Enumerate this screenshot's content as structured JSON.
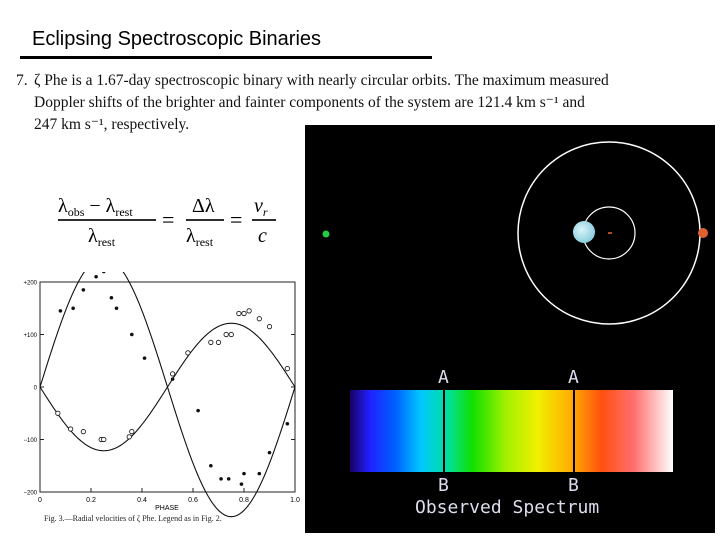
{
  "slide": {
    "title": "Eclipsing Spectroscopic Binaries"
  },
  "problem": {
    "number": "7.",
    "line1": "ζ  Phe is a 1.67-day spectroscopic binary with nearly circular orbits. The maximum measured",
    "line2": "Doppler shifts of the brighter and fainter components of the system are 121.4 km s⁻¹ and",
    "line3": "247 km s⁻¹, respectively."
  },
  "equation": {
    "num1": "λ",
    "sub_obs": "obs",
    "minus": " − λ",
    "sub_rest": "rest",
    "den1": "λ",
    "den1_sub": "rest",
    "eq1": "=",
    "num2": "Δλ",
    "den2": "λ",
    "den2_sub": "rest",
    "eq2": "=",
    "num3": "v",
    "num3_sub": "r",
    "den3": "c"
  },
  "chart_data": {
    "type": "scatter",
    "title": "",
    "xlabel": "PHASE",
    "ylabel": "",
    "xlim": [
      0,
      1.0
    ],
    "ylim": [
      -200,
      200
    ],
    "x_ticks": [
      0,
      0.2,
      0.4,
      0.6,
      0.8,
      1.0
    ],
    "x_tick_labels": [
      "0",
      "0.2",
      "0.4",
      "0.6",
      "0.8",
      "1.0"
    ],
    "y_ticks": [
      200,
      100,
      0,
      -100,
      -200
    ],
    "y_tick_labels": [
      "+200",
      "+100",
      "0",
      "−100",
      "−200"
    ],
    "series": [
      {
        "fit_amplitude": 247,
        "fit_phase_peak": 0.25,
        "points": [
          [
            0.08,
            145
          ],
          [
            0.13,
            150
          ],
          [
            0.17,
            185
          ],
          [
            0.22,
            210
          ],
          [
            0.25,
            220
          ],
          [
            0.28,
            170
          ],
          [
            0.3,
            150
          ],
          [
            0.36,
            100
          ],
          [
            0.41,
            55
          ],
          [
            0.52,
            15
          ],
          [
            0.62,
            -45
          ],
          [
            0.67,
            -150
          ],
          [
            0.71,
            -175
          ],
          [
            0.74,
            -175
          ],
          [
            0.79,
            -185
          ],
          [
            0.8,
            -165
          ],
          [
            0.86,
            -165
          ],
          [
            0.9,
            -125
          ],
          [
            0.97,
            -70
          ]
        ]
      },
      {
        "fit_amplitude": 121.4,
        "fit_phase_peak": 0.75,
        "points": [
          [
            0.07,
            -50
          ],
          [
            0.12,
            -80
          ],
          [
            0.17,
            -85
          ],
          [
            0.24,
            -100
          ],
          [
            0.25,
            -100
          ],
          [
            0.35,
            -95
          ],
          [
            0.36,
            -85
          ],
          [
            0.52,
            25
          ],
          [
            0.58,
            65
          ],
          [
            0.67,
            85
          ],
          [
            0.7,
            85
          ],
          [
            0.73,
            100
          ],
          [
            0.75,
            100
          ],
          [
            0.78,
            140
          ],
          [
            0.8,
            140
          ],
          [
            0.82,
            145
          ],
          [
            0.86,
            130
          ],
          [
            0.9,
            115
          ],
          [
            0.97,
            35
          ]
        ]
      }
    ]
  },
  "figure": {
    "caption": "Fig. 3.—Radial velocities of ζ Phe. Legend as in Fig. 2."
  },
  "simulation": {
    "spectrum_label_top_1": "A",
    "spectrum_label_top_2": "A",
    "spectrum_label_bottom_1": "B",
    "spectrum_label_bottom_2": "B",
    "caption": "Observed Spectrum",
    "colors": {
      "background": "#000000",
      "orbit": "#ffffff",
      "primary_star": "#9ad8e4",
      "secondary_star": "#e06030",
      "observer_dot": "#22cc44"
    }
  }
}
